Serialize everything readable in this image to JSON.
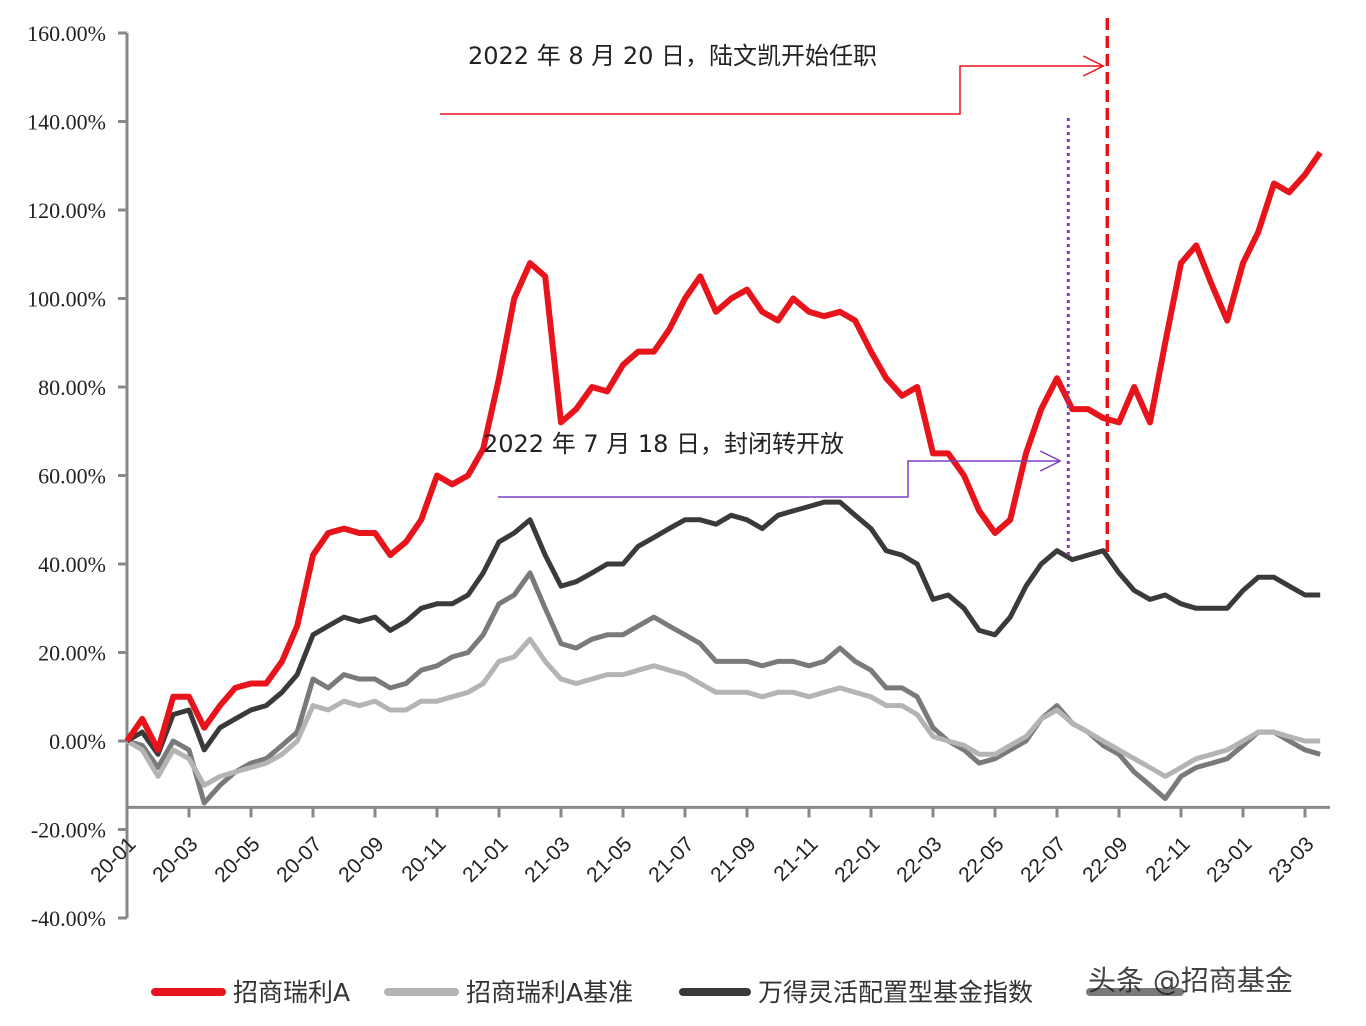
{
  "chart_data": {
    "type": "line",
    "title": "",
    "xlabel": "",
    "ylabel": "",
    "ylim": [
      -40,
      160
    ],
    "y_tick_labels": [
      "160.00%",
      "140.00%",
      "120.00%",
      "100.00%",
      "80.00%",
      "60.00%",
      "40.00%",
      "20.00%",
      "0.00%",
      "-20.00%",
      "-40.00%"
    ],
    "y_tick_values": [
      160,
      140,
      120,
      100,
      80,
      60,
      40,
      20,
      0,
      -20,
      -40
    ],
    "x_tick_labels": [
      "20-01",
      "20-03",
      "20-05",
      "20-07",
      "20-09",
      "20-11",
      "21-01",
      "21-03",
      "21-05",
      "21-07",
      "21-09",
      "21-11",
      "22-01",
      "22-03",
      "22-05",
      "22-07",
      "22-09",
      "22-11",
      "23-01",
      "23-03"
    ],
    "grid": false,
    "legend_position": "bottom",
    "x": [
      "2020-01-01",
      "2020-01-16",
      "2020-02-01",
      "2020-02-16",
      "2020-03-01",
      "2020-03-16",
      "2020-04-01",
      "2020-04-16",
      "2020-05-01",
      "2020-05-16",
      "2020-06-01",
      "2020-06-16",
      "2020-07-01",
      "2020-07-16",
      "2020-08-01",
      "2020-08-16",
      "2020-09-01",
      "2020-09-16",
      "2020-10-01",
      "2020-10-16",
      "2020-11-01",
      "2020-11-16",
      "2020-12-01",
      "2020-12-16",
      "2021-01-01",
      "2021-01-16",
      "2021-02-01",
      "2021-02-16",
      "2021-03-01",
      "2021-03-16",
      "2021-04-01",
      "2021-04-16",
      "2021-05-01",
      "2021-05-16",
      "2021-06-01",
      "2021-06-16",
      "2021-07-01",
      "2021-07-16",
      "2021-08-01",
      "2021-08-16",
      "2021-09-01",
      "2021-09-16",
      "2021-10-01",
      "2021-10-16",
      "2021-11-01",
      "2021-11-16",
      "2021-12-01",
      "2021-12-16",
      "2022-01-01",
      "2022-01-16",
      "2022-02-01",
      "2022-02-16",
      "2022-03-01",
      "2022-03-16",
      "2022-04-01",
      "2022-04-16",
      "2022-05-01",
      "2022-05-16",
      "2022-06-01",
      "2022-06-16",
      "2022-07-01",
      "2022-07-16",
      "2022-08-01",
      "2022-08-16",
      "2022-09-01",
      "2022-09-16",
      "2022-10-01",
      "2022-10-16",
      "2022-11-01",
      "2022-11-16",
      "2022-12-01",
      "2022-12-16",
      "2023-01-01",
      "2023-01-16",
      "2023-02-01",
      "2023-02-16",
      "2023-03-01",
      "2023-03-16"
    ],
    "series": [
      {
        "name": "招商瑞利A",
        "color": "#e8141b",
        "values": [
          0,
          5,
          -2,
          10,
          10,
          3,
          8,
          12,
          13,
          13,
          18,
          26,
          42,
          47,
          48,
          47,
          47,
          42,
          45,
          50,
          60,
          58,
          60,
          66,
          82,
          100,
          108,
          105,
          72,
          75,
          80,
          79,
          85,
          88,
          88,
          93,
          100,
          105,
          97,
          100,
          102,
          97,
          95,
          100,
          97,
          96,
          97,
          95,
          88,
          82,
          78,
          80,
          65,
          65,
          60,
          52,
          47,
          50,
          65,
          75,
          82,
          75,
          75,
          73,
          72,
          80,
          72,
          90,
          108,
          112,
          103,
          95,
          108,
          115,
          126,
          124,
          128,
          133
        ]
      },
      {
        "name": "招商瑞利A基准",
        "color": "#b4b4b4",
        "values": [
          0,
          -2,
          -8,
          -2,
          -4,
          -10,
          -8,
          -7,
          -6,
          -5,
          -3,
          0,
          8,
          7,
          9,
          8,
          9,
          7,
          7,
          9,
          9,
          10,
          11,
          13,
          18,
          19,
          23,
          18,
          14,
          13,
          14,
          15,
          15,
          16,
          17,
          16,
          15,
          13,
          11,
          11,
          11,
          10,
          11,
          11,
          10,
          11,
          12,
          11,
          10,
          8,
          8,
          6,
          1,
          0,
          -1,
          -3,
          -3,
          -1,
          1,
          5,
          7,
          4,
          2,
          0,
          -2,
          -4,
          -6,
          -8,
          -6,
          -4,
          -3,
          -2,
          0,
          2,
          2,
          1,
          0,
          0
        ]
      },
      {
        "name": "万得灵活配置型基金指数",
        "color": "#3a3a3a",
        "values": [
          0,
          2,
          -3,
          6,
          7,
          -2,
          3,
          5,
          7,
          8,
          11,
          15,
          24,
          26,
          28,
          27,
          28,
          25,
          27,
          30,
          31,
          31,
          33,
          38,
          45,
          47,
          50,
          42,
          35,
          36,
          38,
          40,
          40,
          44,
          46,
          48,
          50,
          50,
          49,
          51,
          50,
          48,
          51,
          52,
          53,
          54,
          54,
          51,
          48,
          43,
          42,
          40,
          32,
          33,
          30,
          25,
          24,
          28,
          35,
          40,
          43,
          41,
          42,
          43,
          38,
          34,
          32,
          33,
          31,
          30,
          30,
          30,
          34,
          37,
          37,
          35,
          33,
          33
        ]
      },
      {
        "color": "#7a7a7a",
        "values": [
          0,
          -1,
          -6,
          0,
          -2,
          -14,
          -10,
          -7,
          -5,
          -4,
          -1,
          2,
          14,
          12,
          15,
          14,
          14,
          12,
          13,
          16,
          17,
          19,
          20,
          24,
          31,
          33,
          38,
          30,
          22,
          21,
          23,
          24,
          24,
          26,
          28,
          26,
          24,
          22,
          18,
          18,
          18,
          17,
          18,
          18,
          17,
          18,
          21,
          18,
          16,
          12,
          12,
          10,
          3,
          0,
          -2,
          -5,
          -4,
          -2,
          0,
          5,
          8,
          4,
          2,
          -1,
          -3,
          -7,
          -10,
          -13,
          -8,
          -6,
          -5,
          -4,
          -1,
          2,
          2,
          0,
          -2,
          -3
        ]
      }
    ],
    "annotations": [
      {
        "text": "2022 年 8 月 20 日，陆文凯开始任职",
        "date": "2022-08-20",
        "color": "#e8141b",
        "line_style": "dashed"
      },
      {
        "text": "2022 年 7 月 18 日，封闭转开放",
        "date": "2022-07-18",
        "color": "#7b3fbf",
        "line_style": "dotted"
      }
    ]
  },
  "watermark": "头条 @招商基金"
}
